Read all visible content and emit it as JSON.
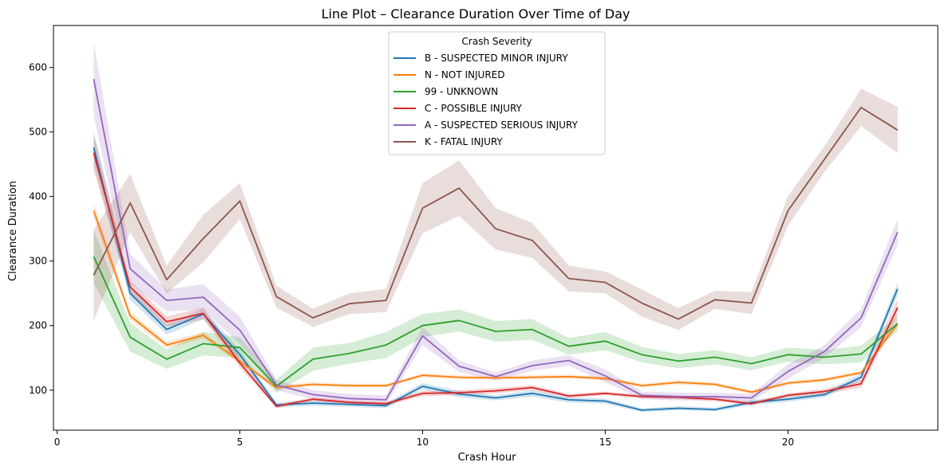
{
  "chart_data": {
    "type": "line",
    "title": "Line Plot – Clearance Duration Over Time of Day",
    "xlabel": "Crash Hour",
    "ylabel": "Clearance Duration",
    "xlim": [
      -0.1,
      24.1
    ],
    "ylim": [
      38,
      665
    ],
    "xticks": [
      0,
      5,
      10,
      15,
      20
    ],
    "yticks": [
      100,
      200,
      300,
      400,
      500,
      600
    ],
    "grid": false,
    "legend": {
      "title": "Crash Severity",
      "placement": "upper-center"
    },
    "x": [
      1,
      2,
      3,
      4,
      5,
      6,
      7,
      8,
      9,
      10,
      11,
      12,
      13,
      14,
      15,
      16,
      17,
      18,
      19,
      20,
      21,
      22,
      23
    ],
    "series": [
      {
        "name": "B - SUSPECTED MINOR INJURY",
        "color": "#1f77b4",
        "values": [
          476,
          250,
          194,
          218,
          155,
          77,
          80,
          78,
          76,
          106,
          94,
          88,
          95,
          85,
          83,
          69,
          72,
          70,
          81,
          86,
          93,
          120,
          257
        ],
        "lower": [
          450,
          240,
          186,
          210,
          148,
          73,
          76,
          74,
          72,
          101,
          89,
          84,
          90,
          81,
          79,
          66,
          69,
          67,
          77,
          82,
          89,
          114,
          247
        ],
        "upper": [
          502,
          260,
          202,
          226,
          162,
          81,
          84,
          82,
          80,
          111,
          99,
          92,
          100,
          89,
          87,
          72,
          75,
          73,
          85,
          90,
          97,
          126,
          267
        ]
      },
      {
        "name": "N - NOT INJURED",
        "color": "#ff7f0e",
        "values": [
          378,
          215,
          170,
          185,
          145,
          104,
          109,
          107,
          107,
          123,
          120,
          119,
          120,
          121,
          118,
          107,
          112,
          109,
          97,
          111,
          116,
          127,
          203
        ],
        "lower": [
          366,
          209,
          165,
          180,
          141,
          101,
          106,
          104,
          104,
          120,
          117,
          116,
          117,
          118,
          115,
          104,
          109,
          106,
          94,
          108,
          113,
          124,
          198
        ],
        "upper": [
          390,
          221,
          175,
          190,
          149,
          107,
          112,
          110,
          110,
          126,
          123,
          122,
          123,
          124,
          121,
          110,
          115,
          112,
          100,
          114,
          119,
          130,
          208
        ]
      },
      {
        "name": "99 - UNKNOWN",
        "color": "#2ca02c",
        "values": [
          307,
          182,
          148,
          172,
          166,
          106,
          148,
          157,
          170,
          200,
          208,
          191,
          194,
          168,
          176,
          155,
          145,
          151,
          141,
          155,
          151,
          156,
          203
        ],
        "lower": [
          266,
          160,
          133,
          154,
          150,
          96,
          130,
          141,
          150,
          182,
          191,
          175,
          178,
          155,
          162,
          143,
          134,
          140,
          131,
          144,
          140,
          143,
          191
        ],
        "upper": [
          348,
          204,
          163,
          190,
          182,
          116,
          166,
          173,
          190,
          218,
          225,
          207,
          210,
          181,
          190,
          167,
          156,
          162,
          151,
          166,
          162,
          169,
          215
        ]
      },
      {
        "name": "C - POSSIBLE INJURY",
        "color": "#d62728",
        "values": [
          468,
          260,
          206,
          219,
          142,
          75,
          86,
          81,
          79,
          95,
          96,
          99,
          104,
          91,
          95,
          90,
          89,
          86,
          79,
          92,
          98,
          110,
          228
        ],
        "lower": [
          440,
          250,
          198,
          210,
          135,
          72,
          83,
          78,
          76,
          91,
          92,
          95,
          100,
          88,
          92,
          87,
          86,
          83,
          76,
          89,
          94,
          104,
          215
        ],
        "upper": [
          496,
          270,
          214,
          228,
          149,
          78,
          89,
          84,
          82,
          99,
          100,
          103,
          108,
          94,
          98,
          93,
          92,
          89,
          82,
          95,
          102,
          116,
          241
        ]
      },
      {
        "name": "A - SUSPECTED SERIOUS INJURY",
        "color": "#9467bd",
        "values": [
          582,
          288,
          239,
          244,
          193,
          108,
          93,
          87,
          85,
          184,
          137,
          121,
          138,
          146,
          122,
          92,
          90,
          90,
          88,
          129,
          160,
          212,
          345
        ],
        "lower": [
          525,
          265,
          222,
          224,
          172,
          100,
          86,
          80,
          78,
          170,
          128,
          115,
          130,
          138,
          112,
          86,
          84,
          84,
          82,
          118,
          150,
          198,
          325
        ],
        "upper": [
          639,
          311,
          256,
          264,
          214,
          116,
          100,
          94,
          92,
          198,
          146,
          127,
          146,
          154,
          132,
          98,
          96,
          96,
          94,
          140,
          170,
          226,
          365
        ]
      },
      {
        "name": "K - FATAL INJURY",
        "color": "#8c564b",
        "values": [
          278,
          390,
          271,
          335,
          393,
          245,
          212,
          234,
          239,
          382,
          413,
          350,
          332,
          273,
          267,
          235,
          210,
          240,
          235,
          378,
          458,
          538,
          503
        ],
        "lower": [
          208,
          345,
          250,
          298,
          365,
          228,
          198,
          218,
          221,
          343,
          370,
          318,
          305,
          253,
          250,
          214,
          193,
          226,
          218,
          355,
          438,
          509,
          467
        ],
        "upper": [
          348,
          435,
          293,
          372,
          421,
          262,
          226,
          250,
          257,
          421,
          456,
          382,
          359,
          293,
          284,
          256,
          227,
          254,
          252,
          401,
          478,
          567,
          539
        ]
      }
    ]
  }
}
